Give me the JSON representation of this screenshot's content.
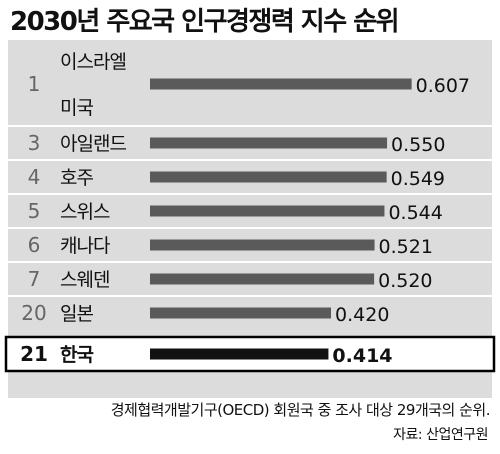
{
  "chart_data": {
    "type": "bar",
    "orientation": "horizontal",
    "title": "2030년 주요국 인구경쟁력 지수 순위",
    "rows": [
      {
        "rank": "1",
        "labels": [
          "이스라엘",
          "미국"
        ],
        "value": 0.607,
        "value_label": "0.607",
        "highlight": false
      },
      {
        "rank": "3",
        "labels": [
          "아일랜드"
        ],
        "value": 0.55,
        "value_label": "0.550",
        "highlight": false
      },
      {
        "rank": "4",
        "labels": [
          "호주"
        ],
        "value": 0.549,
        "value_label": "0.549",
        "highlight": false
      },
      {
        "rank": "5",
        "labels": [
          "스위스"
        ],
        "value": 0.544,
        "value_label": "0.544",
        "highlight": false
      },
      {
        "rank": "6",
        "labels": [
          "캐나다"
        ],
        "value": 0.521,
        "value_label": "0.521",
        "highlight": false
      },
      {
        "rank": "7",
        "labels": [
          "스웨덴"
        ],
        "value": 0.52,
        "value_label": "0.520",
        "highlight": false
      },
      {
        "rank": "20",
        "labels": [
          "일본"
        ],
        "value": 0.42,
        "value_label": "0.420",
        "highlight": false
      },
      {
        "rank": "21",
        "labels": [
          "한국"
        ],
        "value": 0.414,
        "value_label": "0.414",
        "highlight": true
      }
    ],
    "footnote": "경제협력개발기구(OECD) 회원국 중 조사 대상 29개국의 순위.",
    "source": "자료: 산업연구원",
    "colors": {
      "panel": "#dcdcdc",
      "bar": "#5a5a5a",
      "highlight_bar": "#111111",
      "rank_text": "#666666",
      "text": "#111111",
      "separator": "#ffffff",
      "highlight_row": "#ffffff"
    }
  }
}
